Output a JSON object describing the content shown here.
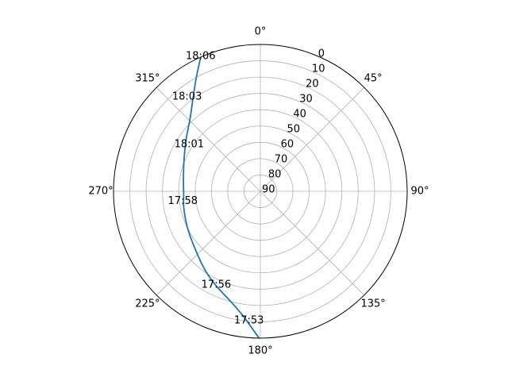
{
  "chart_data": {
    "type": "line",
    "projection": "polar",
    "theta_zero_location": "N",
    "theta_direction": "clockwise",
    "theta_ticks": [
      {
        "deg": 0,
        "label": "0°"
      },
      {
        "deg": 45,
        "label": "45°"
      },
      {
        "deg": 90,
        "label": "90°"
      },
      {
        "deg": 135,
        "label": "135°"
      },
      {
        "deg": 180,
        "label": "180°"
      },
      {
        "deg": 225,
        "label": "225°"
      },
      {
        "deg": 270,
        "label": "270°"
      },
      {
        "deg": 315,
        "label": "315°"
      }
    ],
    "r_axis": {
      "quantity": "elevation",
      "inverted": true,
      "range": [
        0,
        90
      ],
      "ticks": [
        0,
        10,
        20,
        30,
        40,
        50,
        60,
        70,
        80,
        90
      ],
      "tick_labels": [
        "0",
        "10",
        "20",
        "30",
        "40",
        "50",
        "60",
        "70",
        "80",
        "90"
      ],
      "label_angle_deg": 22.5
    },
    "grid": true,
    "series": [
      {
        "color": "#1f77b4",
        "points": [
          {
            "az": 180.5,
            "el": 0
          },
          {
            "az": 188,
            "el": 13
          },
          {
            "az": 195,
            "el": 20
          },
          {
            "az": 205,
            "el": 26
          },
          {
            "az": 215,
            "el": 31
          },
          {
            "az": 228,
            "el": 36.5
          },
          {
            "az": 243,
            "el": 40
          },
          {
            "az": 258,
            "el": 42
          },
          {
            "az": 268,
            "el": 43
          },
          {
            "az": 277,
            "el": 42.5
          },
          {
            "az": 292,
            "el": 39.5
          },
          {
            "az": 305,
            "el": 34.5
          },
          {
            "az": 316,
            "el": 28
          },
          {
            "az": 323,
            "el": 21
          },
          {
            "az": 330,
            "el": 11
          },
          {
            "az": 336,
            "el": 0
          }
        ]
      }
    ],
    "annotations": [
      {
        "text": "17:53",
        "az": 185,
        "el": 10
      },
      {
        "text": "17:56",
        "az": 205,
        "el": 26
      },
      {
        "text": "17:58",
        "az": 262,
        "el": 42
      },
      {
        "text": "18:01",
        "az": 303,
        "el": 38
      },
      {
        "text": "18:03",
        "az": 322,
        "el": 17
      },
      {
        "text": "18:06",
        "az": 336,
        "el": 0
      }
    ]
  }
}
